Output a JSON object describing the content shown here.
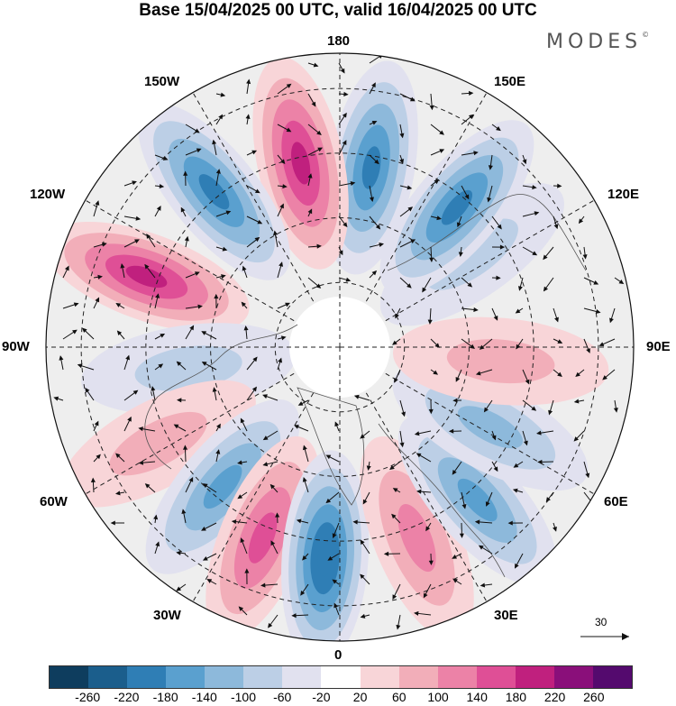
{
  "title": "Base 15/04/2025 00 UTC, valid 16/04/2025 00 UTC",
  "brand": "MODES",
  "brand_mark": "©",
  "longitude_labels": {
    "top": "180",
    "bottom": "0",
    "left": "90W",
    "right": "90E",
    "upper_left_1": "150W",
    "upper_left_2": "120W",
    "lower_left_1": "60W",
    "lower_left_2": "30W",
    "upper_right_1": "150E",
    "upper_right_2": "120E",
    "lower_right_1": "60E",
    "lower_right_2": "30E"
  },
  "reference_vector": {
    "label": "30"
  },
  "colorbar": {
    "colors": [
      "#0e3d5e",
      "#1b5e8c",
      "#2f7eb5",
      "#5aa0cf",
      "#8db9db",
      "#bccfe6",
      "#e1e1ef",
      "#ffffff",
      "#f8d5d8",
      "#f2aeb9",
      "#ec82a7",
      "#df4f96",
      "#c0207e",
      "#8a0f7a",
      "#540a6e"
    ],
    "ticks": [
      "-260",
      "-220",
      "-180",
      "-140",
      "-100",
      "-60",
      "-20",
      "20",
      "60",
      "100",
      "140",
      "180",
      "220",
      "260"
    ]
  },
  "map": {
    "anomalies": [
      {
        "lon": 170,
        "r": 0.62,
        "value": -210
      },
      {
        "lon": -168,
        "r": 0.64,
        "value": 200
      },
      {
        "lon": -141,
        "r": 0.68,
        "value": -190
      },
      {
        "lon": -110,
        "r": 0.7,
        "value": 180
      },
      {
        "lon": -82,
        "r": 0.52,
        "value": -80
      },
      {
        "lon": -62,
        "r": 0.7,
        "value": 90
      },
      {
        "lon": -40,
        "r": 0.62,
        "value": -170
      },
      {
        "lon": -22,
        "r": 0.7,
        "value": 150
      },
      {
        "lon": -4,
        "r": 0.72,
        "value": -220
      },
      {
        "lon": 22,
        "r": 0.7,
        "value": 120
      },
      {
        "lon": 42,
        "r": 0.7,
        "value": -150
      },
      {
        "lon": 62,
        "r": 0.58,
        "value": -130
      },
      {
        "lon": 85,
        "r": 0.55,
        "value": 70
      },
      {
        "lon": 125,
        "r": 0.55,
        "value": -90
      },
      {
        "lon": 140,
        "r": 0.62,
        "value": -200
      }
    ]
  }
}
